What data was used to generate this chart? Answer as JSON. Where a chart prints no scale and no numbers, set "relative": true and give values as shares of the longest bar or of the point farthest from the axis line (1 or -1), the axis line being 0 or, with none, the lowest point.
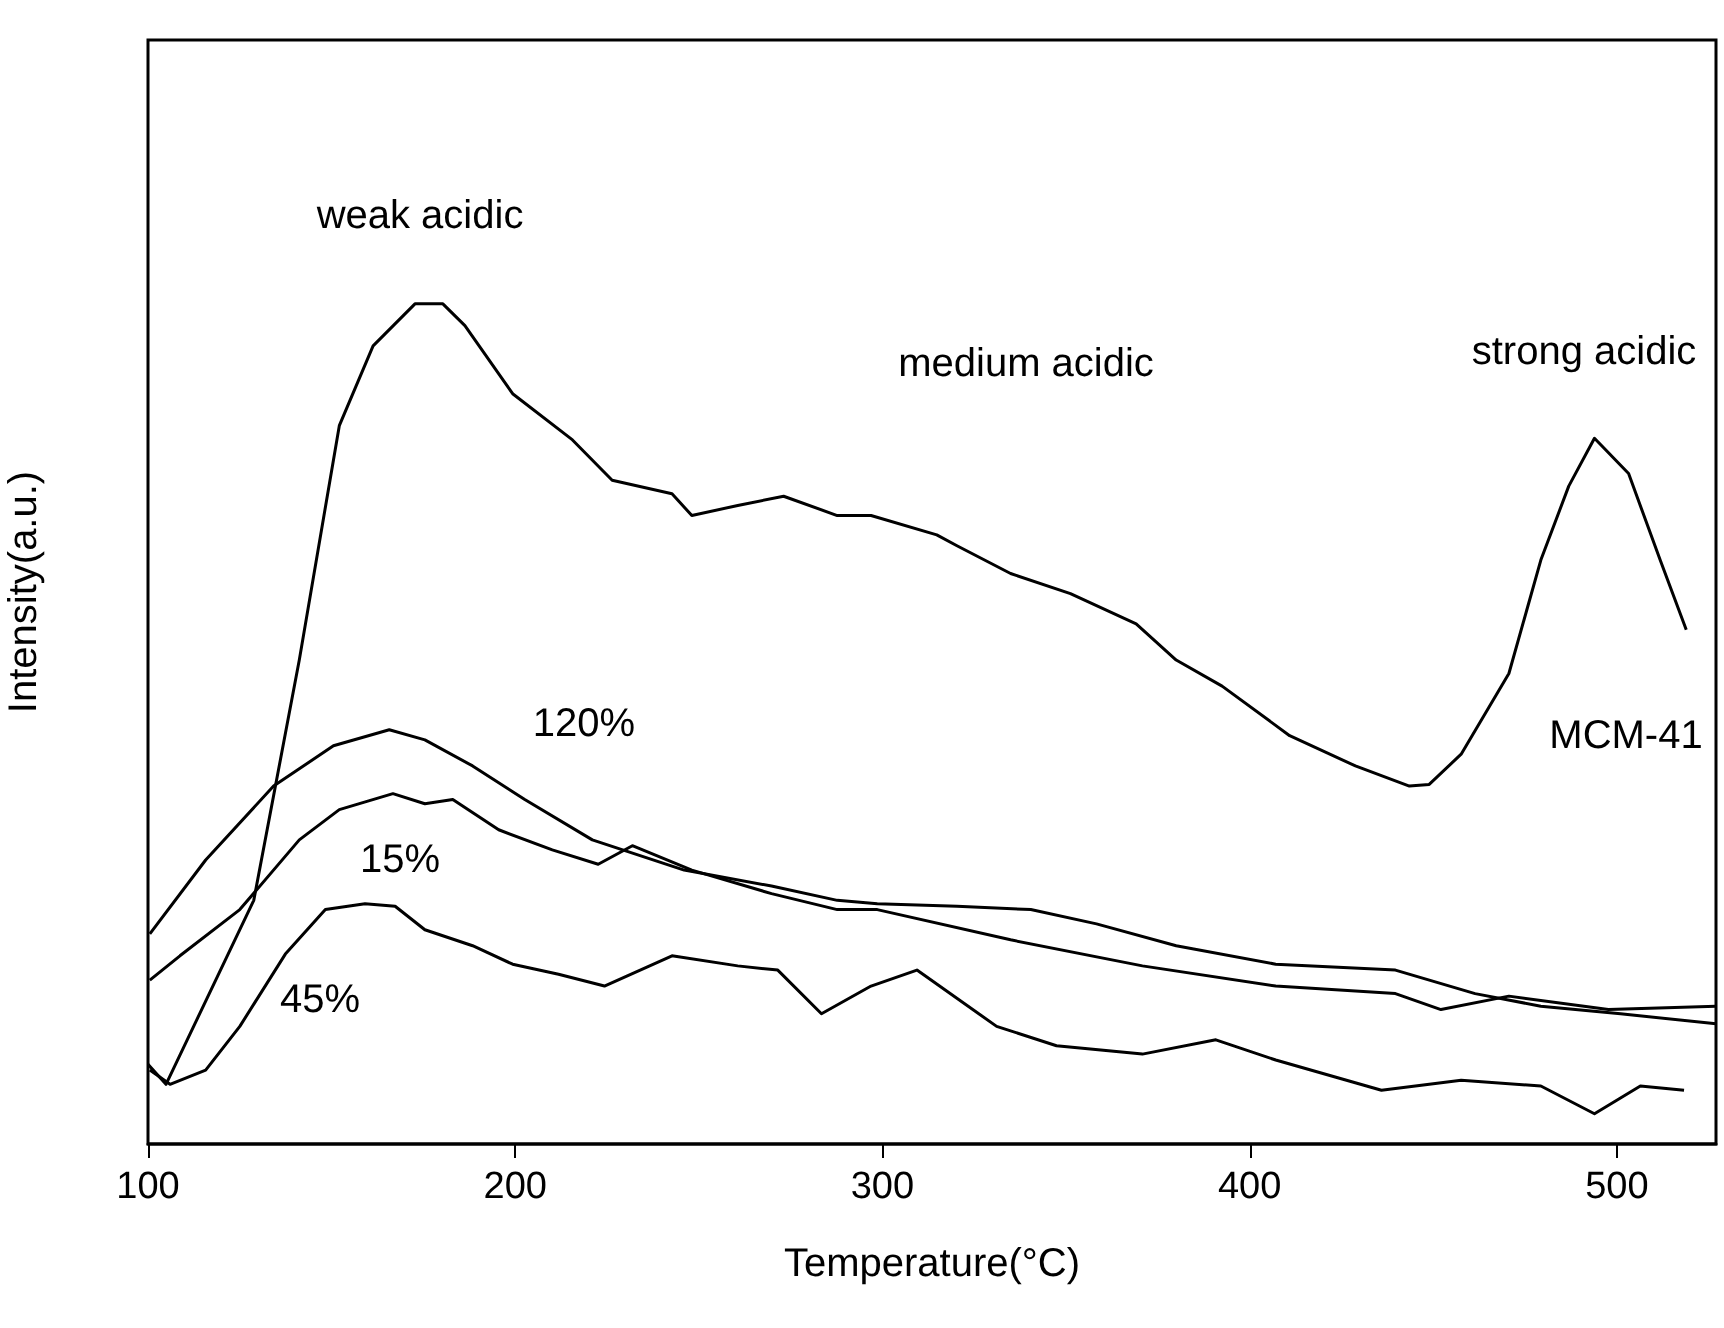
{
  "chart_data": {
    "type": "line",
    "relative": true,
    "xlabel": "Temperature(°C)",
    "ylabel": "Intensity(a.u.)",
    "xlim": [
      100,
      527
    ],
    "xticks": [
      100,
      200,
      300,
      400,
      500
    ],
    "grid": false,
    "marker": "none",
    "line_style": "solid",
    "series": [
      {
        "name": "MCM-41",
        "color": "#000000",
        "x": [
          100,
          104.9,
          128.8,
          141.2,
          152.1,
          161.3,
          172.7,
          180.3,
          186.3,
          199.3,
          215.6,
          226.4,
          242.7,
          248.1,
          260.6,
          273.1,
          287.7,
          296.9,
          314.8,
          320.3,
          334.9,
          351.2,
          369.1,
          380,
          392.5,
          410.9,
          428.8,
          443.5,
          448.9,
          457.6,
          470.6,
          479.3,
          486.9,
          493.9,
          503.2,
          511.8,
          518.9
        ],
        "values": [
          0.095,
          0.071,
          0.29,
          0.576,
          0.855,
          0.95,
          1.0,
          1.0,
          0.974,
          0.893,
          0.838,
          0.79,
          0.774,
          0.748,
          0.76,
          0.771,
          0.748,
          0.748,
          0.725,
          0.712,
          0.679,
          0.655,
          0.619,
          0.576,
          0.545,
          0.486,
          0.45,
          0.426,
          0.428,
          0.464,
          0.56,
          0.695,
          0.783,
          0.84,
          0.798,
          0.695,
          0.612
        ]
      },
      {
        "name": "120%",
        "color": "#000000",
        "x": [
          100.5,
          115.7,
          134.2,
          150.5,
          165.7,
          175.4,
          188.4,
          202.6,
          221,
          246,
          269.8,
          287.7,
          298.6,
          320.3,
          340.4,
          358.3,
          380,
          407.1,
          439.7,
          461.4,
          479.3,
          501,
          527
        ],
        "values": [
          0.25,
          0.338,
          0.426,
          0.474,
          0.493,
          0.481,
          0.45,
          0.41,
          0.362,
          0.326,
          0.307,
          0.29,
          0.286,
          0.283,
          0.279,
          0.262,
          0.236,
          0.214,
          0.207,
          0.179,
          0.164,
          0.155,
          0.143
        ]
      },
      {
        "name": "15%",
        "color": "#000000",
        "x": [
          100.5,
          108.7,
          125,
          141.2,
          152.1,
          166.7,
          175.4,
          183,
          195.5,
          210.1,
          222.6,
          231.9,
          248.1,
          269.8,
          287.7,
          298.6,
          334.9,
          370.8,
          407.1,
          439.7,
          452.1,
          470.6,
          497.7,
          527
        ],
        "values": [
          0.195,
          0.224,
          0.279,
          0.362,
          0.398,
          0.417,
          0.405,
          0.41,
          0.374,
          0.35,
          0.333,
          0.355,
          0.326,
          0.298,
          0.279,
          0.279,
          0.243,
          0.212,
          0.188,
          0.179,
          0.16,
          0.176,
          0.16,
          0.164
        ]
      },
      {
        "name": "45%",
        "color": "#000000",
        "x": [
          100.5,
          106,
          115.7,
          125,
          137.4,
          148.3,
          159.1,
          167.3,
          175.4,
          188.4,
          199.3,
          211.8,
          224.3,
          242.7,
          260.6,
          271.5,
          283.4,
          296.9,
          309.4,
          331.1,
          347.4,
          370.8,
          390.8,
          407.1,
          435.9,
          457.6,
          479.3,
          493.9,
          506.4,
          518.3
        ],
        "values": [
          0.088,
          0.071,
          0.088,
          0.14,
          0.226,
          0.279,
          0.286,
          0.283,
          0.255,
          0.236,
          0.214,
          0.202,
          0.188,
          0.224,
          0.212,
          0.207,
          0.155,
          0.188,
          0.207,
          0.14,
          0.117,
          0.107,
          0.124,
          0.1,
          0.064,
          0.076,
          0.069,
          0.036,
          0.069,
          0.064
        ]
      }
    ],
    "annotations": [
      "weak acidic",
      "medium acidic",
      "strong acidic"
    ]
  }
}
